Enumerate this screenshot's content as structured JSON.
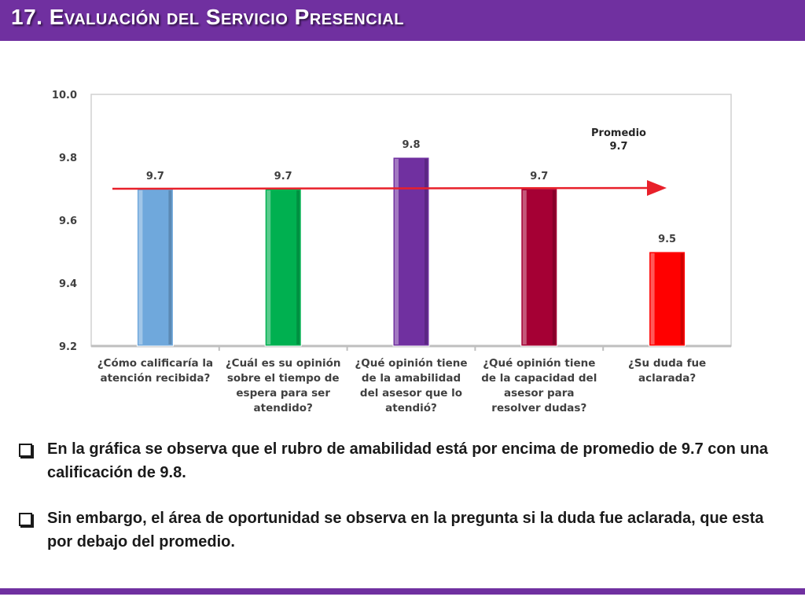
{
  "slide": {
    "title": "17. Evaluación del Servicio Presencial",
    "accent_color": "#7030a0"
  },
  "chart_data": {
    "type": "bar",
    "categories": [
      [
        "¿Cómo calificaría la",
        "atención recibida?"
      ],
      [
        "¿Cuál es su opinión",
        "sobre el tiempo de",
        "espera para ser",
        "atendido?"
      ],
      [
        "¿Qué opinión tiene",
        "de la amabilidad",
        "del asesor que lo",
        "atendió?"
      ],
      [
        "¿Qué opinión tiene",
        "de la capacidad del",
        "asesor para",
        "resolver dudas?"
      ],
      [
        "¿Su duda fue",
        "aclarada?"
      ]
    ],
    "values": [
      9.7,
      9.7,
      9.8,
      9.7,
      9.5
    ],
    "data_labels": [
      "9.7",
      "9.7",
      "9.8",
      "9.7",
      "9.5"
    ],
    "colors": [
      "#6fa8dc",
      "#00b050",
      "#7030a0",
      "#a50034",
      "#ff0000"
    ],
    "ylim": [
      9.2,
      10.0
    ],
    "yticks": [
      "9.2",
      "9.4",
      "9.6",
      "9.8",
      "10.0"
    ],
    "grid": false,
    "average": {
      "value": 9.7,
      "label_line1": "Promedio",
      "label_line2": "9.7",
      "color": "#e8202a"
    }
  },
  "notes": [
    "En la gráfica se observa que el rubro de amabilidad está por encima de promedio de 9.7 con una calificación de 9.8.",
    "Sin embargo, el área de oportunidad se observa en la pregunta si la duda fue aclarada, que esta por debajo del promedio."
  ]
}
